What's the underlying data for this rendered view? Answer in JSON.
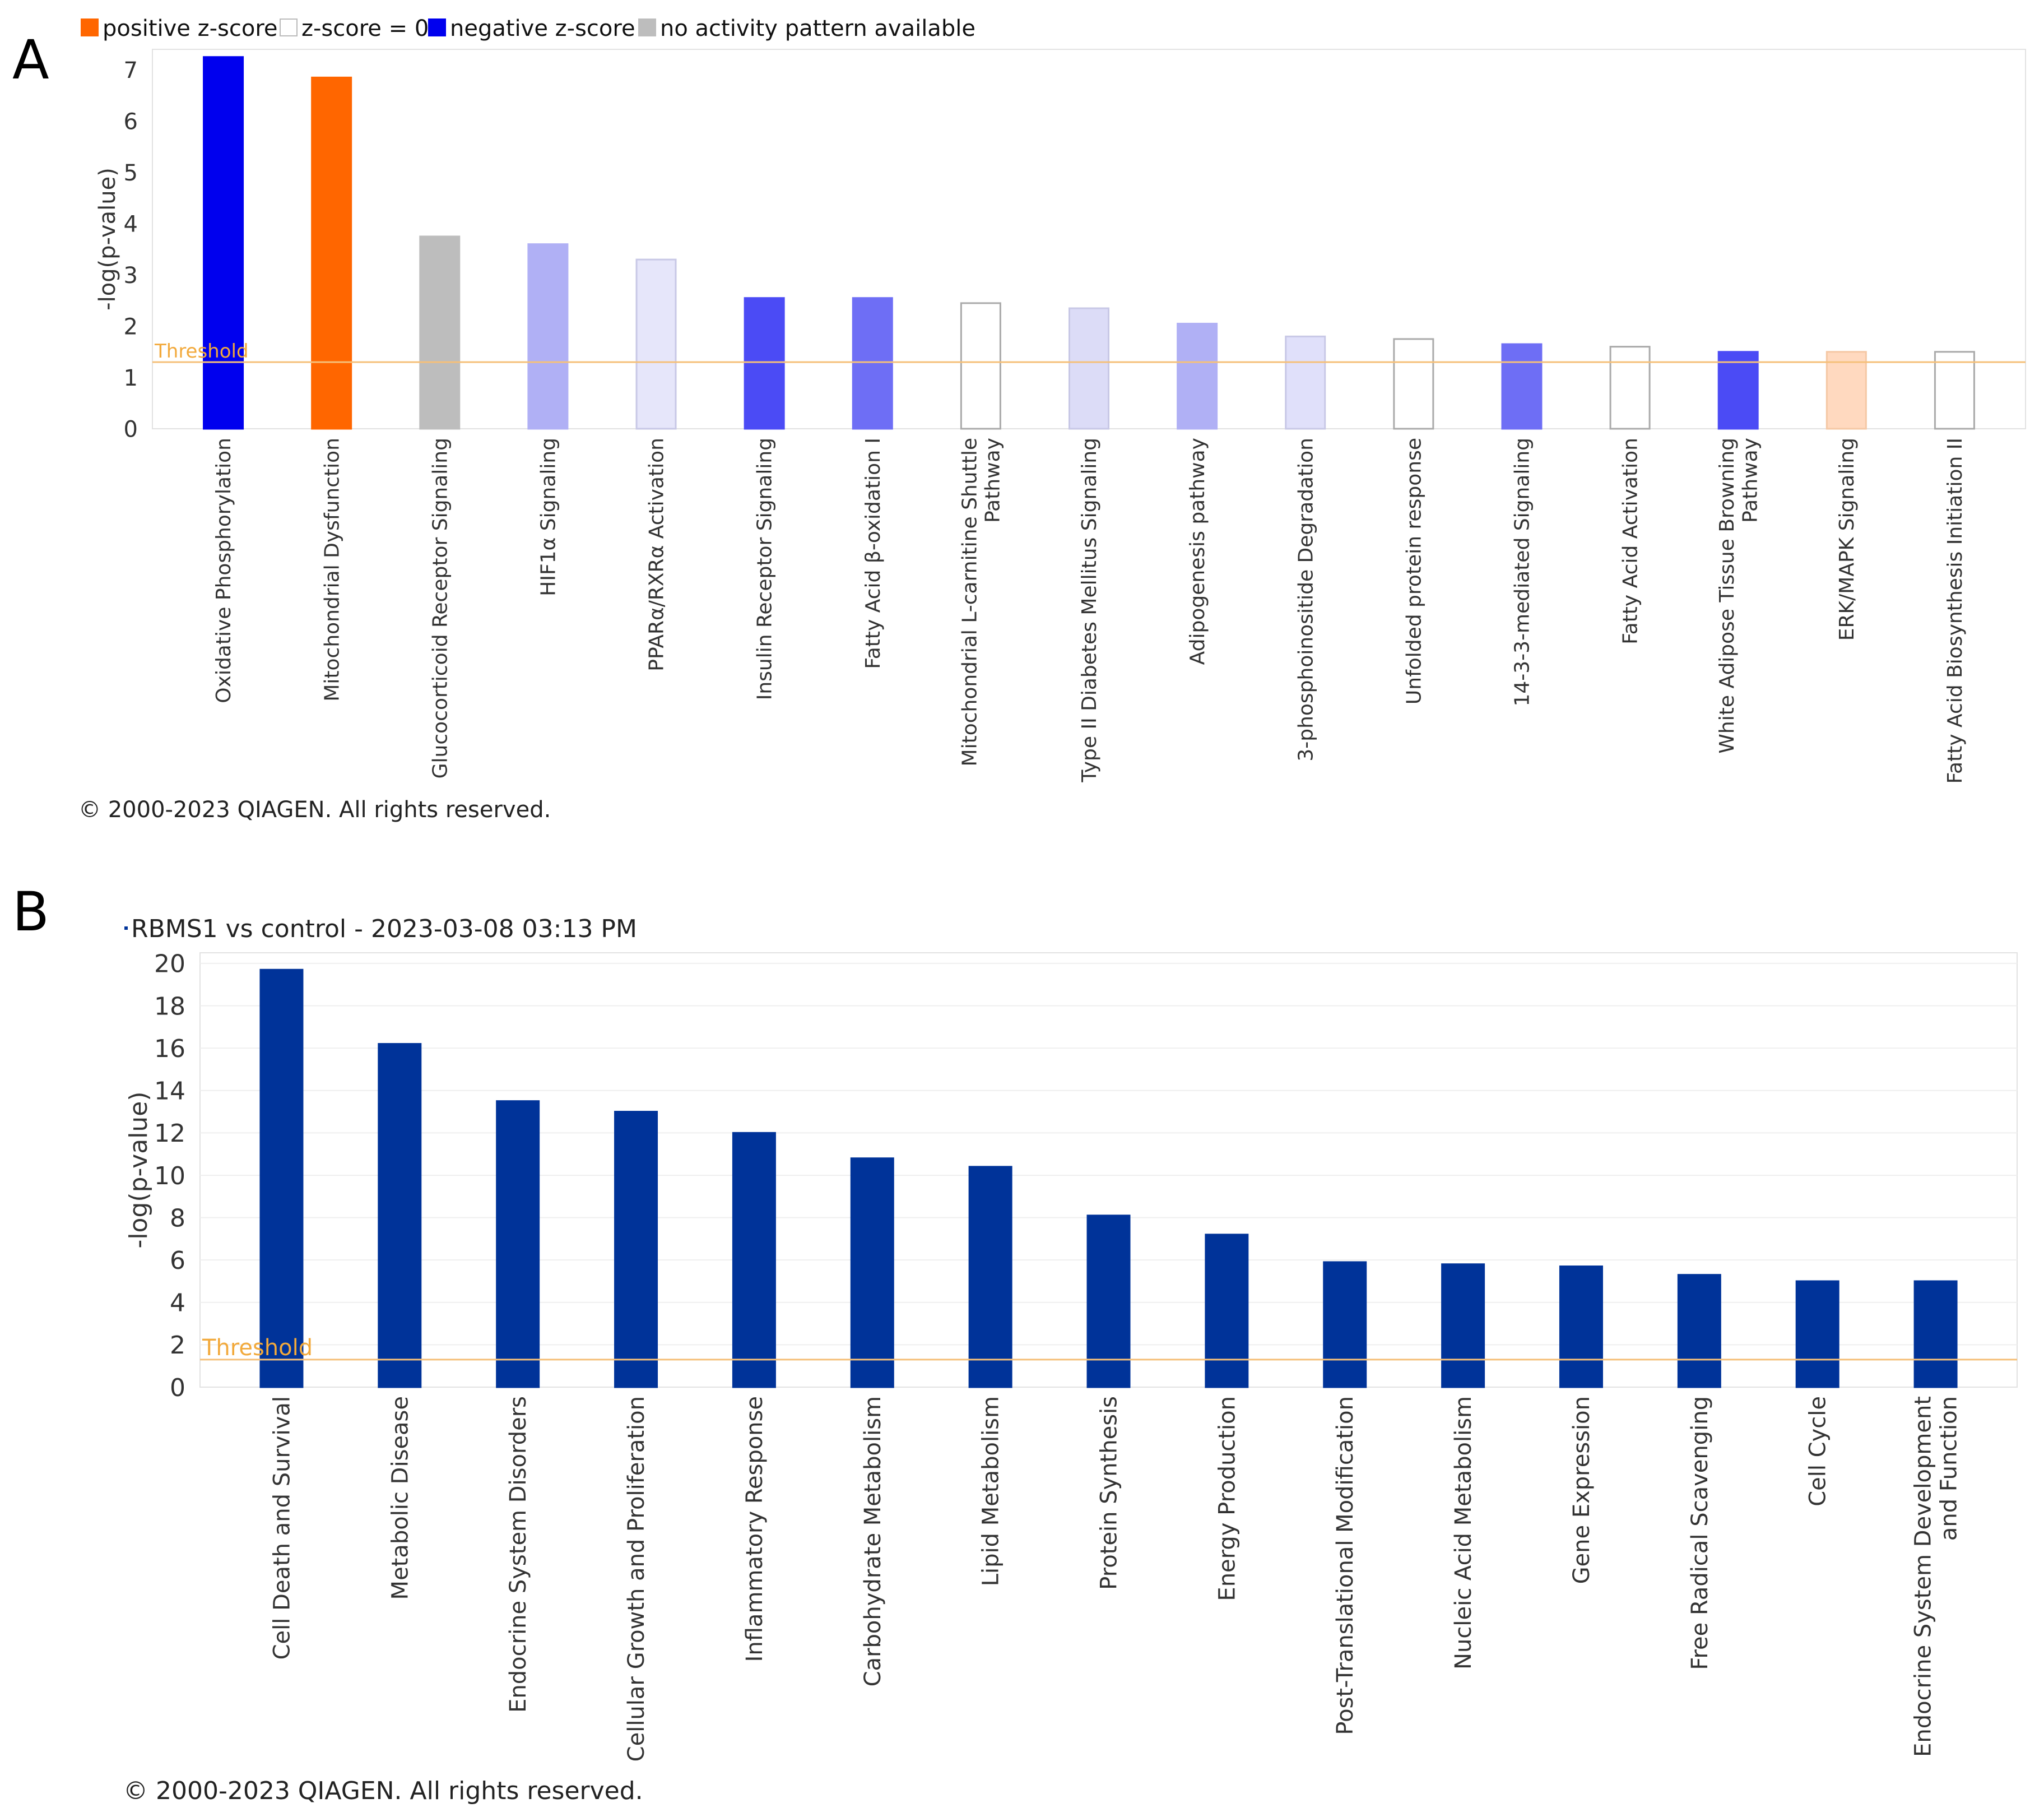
{
  "panel_labels": {
    "a": "A",
    "b": "B"
  },
  "legend": [
    {
      "label": "positive z-score",
      "color": "#ff6600",
      "border": "#ff6600"
    },
    {
      "label": "z-score = 0",
      "color": "#ffffff",
      "border": "#bbbbbb"
    },
    {
      "label": "negative z-score",
      "color": "#0000ee",
      "border": "#0000ee"
    },
    {
      "label": "no activity pattern available",
      "color": "#bdbdbd",
      "border": "#bdbdbd"
    }
  ],
  "copyright": "© 2000-2023 QIAGEN. All rights reserved.",
  "threshold_label": "Threshold",
  "chart_data": [
    {
      "type": "bar",
      "panel": "A",
      "title": "",
      "xlabel": "",
      "ylabel": "-log(p-value)",
      "ylim": [
        0,
        7.4
      ],
      "yticks": [
        0,
        1,
        2,
        3,
        4,
        5,
        6,
        7
      ],
      "threshold": 1.3,
      "categories": [
        [
          "Oxidative Phosphorylation"
        ],
        [
          "Mitochondrial Dysfunction"
        ],
        [
          "Glucocorticoid Receptor Signaling"
        ],
        [
          "HIF1α Signaling"
        ],
        [
          "PPARα/RXRα Activation"
        ],
        [
          "Insulin Receptor Signaling"
        ],
        [
          "Fatty Acid β-oxidation I"
        ],
        [
          "Mitochondrial L-carnitine Shuttle",
          "Pathway"
        ],
        [
          "Type II Diabetes Mellitus Signaling"
        ],
        [
          "Adipogenesis pathway"
        ],
        [
          "3-phosphoinositide Degradation"
        ],
        [
          "Unfolded protein response"
        ],
        [
          "14-3-3-mediated Signaling"
        ],
        [
          "Fatty Acid Activation"
        ],
        [
          "White Adipose Tissue Browning",
          "Pathway"
        ],
        [
          "ERK/MAPK Signaling"
        ],
        [
          "Fatty Acid Biosynthesis Initiation II"
        ]
      ],
      "values": [
        7.25,
        6.85,
        3.75,
        3.6,
        3.3,
        2.55,
        2.55,
        2.45,
        2.35,
        2.05,
        1.8,
        1.75,
        1.65,
        1.6,
        1.5,
        1.5,
        1.5
      ],
      "colors": [
        "#0000ee",
        "#ff6600",
        "#bdbdbd",
        "#b0b0f5",
        "#e6e6fa",
        "#4b4bf5",
        "#6e6ef5",
        "#ffffff",
        "#dcdcf7",
        "#b0b0f5",
        "#e0e0fa",
        "#ffffff",
        "#6e6ef5",
        "#ffffff",
        "#4b4bf5",
        "#ffd9bf",
        "#ffffff"
      ],
      "borders": [
        "#0000ee",
        "#ff6600",
        "#bdbdbd",
        "#b0b0f5",
        "#c8c8e6",
        "#4b4bf5",
        "#6e6ef5",
        "#aaaaaa",
        "#c8c8e6",
        "#b0b0f5",
        "#c8c8e6",
        "#aaaaaa",
        "#6e6ef5",
        "#aaaaaa",
        "#4b4bf5",
        "#f5c8a5",
        "#aaaaaa"
      ]
    },
    {
      "type": "bar",
      "panel": "B",
      "title": "RBMS1 vs control - 2023-03-08 03:13 PM",
      "xlabel": "",
      "ylabel": "-log(p-value)",
      "ylim": [
        0,
        20.5
      ],
      "yticks": [
        0,
        2,
        4,
        6,
        8,
        10,
        12,
        14,
        16,
        18,
        20
      ],
      "threshold": 1.3,
      "bar_color": "#003399",
      "categories": [
        [
          "Cell Death and Survival"
        ],
        [
          "Metabolic Disease"
        ],
        [
          "Endocrine System Disorders"
        ],
        [
          "Cellular Growth and Proliferation"
        ],
        [
          "Inflammatory Response"
        ],
        [
          "Carbohydrate Metabolism"
        ],
        [
          "Lipid Metabolism"
        ],
        [
          "Protein Synthesis"
        ],
        [
          "Energy Production"
        ],
        [
          "Post-Translational Modification"
        ],
        [
          "Nucleic Acid Metabolism"
        ],
        [
          "Gene Expression"
        ],
        [
          "Free Radical Scavenging"
        ],
        [
          "Cell Cycle"
        ],
        [
          "Endocrine System Development",
          "and Function"
        ]
      ],
      "values": [
        19.7,
        16.2,
        13.5,
        13.0,
        12.0,
        10.8,
        10.4,
        8.1,
        7.2,
        5.9,
        5.8,
        5.7,
        5.3,
        5.0,
        5.0
      ]
    }
  ]
}
